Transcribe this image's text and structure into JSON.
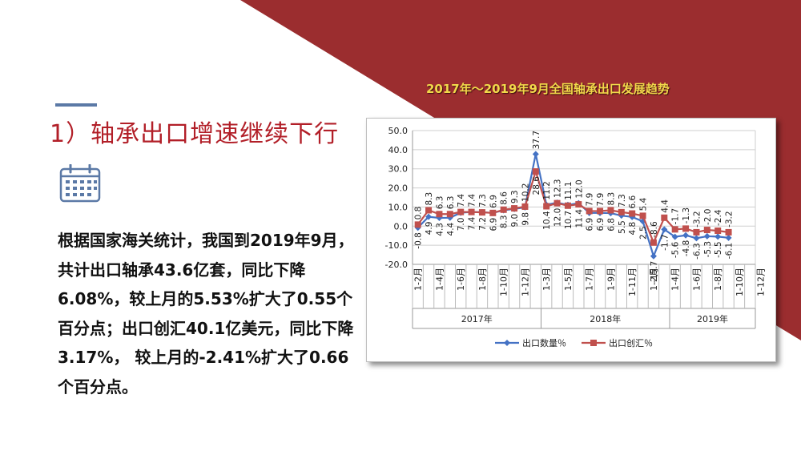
{
  "colors": {
    "banner": "#9b2d2f",
    "heading": "#b21f28",
    "accent_line": "#5b79a6",
    "series_quantity": "#4472c4",
    "series_value": "#c0504d",
    "chart_title": "#f1d84a"
  },
  "icons": {
    "calendar": "calendar-icon"
  },
  "heading": "1）轴承出口增速继续下行",
  "body": {
    "paragraph": "根据国家海关统计，我国到2019年9月，共计出口轴承43.6亿套，同比下降6.08%，较上月的5.53%扩大了0.55个百分点；出口创汇40.1亿美元，同比下降3.17%， 较上月的-2.41%扩大了0.66个百分点。"
  },
  "chart_data": {
    "type": "line",
    "title": "2017年～2019年9月全国轴承出口发展趋势",
    "xlabel": "",
    "ylabel": "",
    "ylim": [
      -20,
      50
    ],
    "yticks": [
      "50.0",
      "40.0",
      "30.0",
      "20.0",
      "10.0",
      "0.0",
      "-10.0",
      "-20.0"
    ],
    "grid": true,
    "legend_position": "bottom",
    "x_tick_labels": [
      "1-2月",
      "1-4月",
      "1-6月",
      "1-8月",
      "1-10月",
      "1-12月",
      "1-3月",
      "1-5月",
      "1-7月",
      "1-9月",
      "1-11月",
      "1-2月",
      "1-4月",
      "1-6月",
      "1-8月",
      "1-10月",
      "1-12月"
    ],
    "year_groups": [
      "2017年",
      "2018年",
      "2019年"
    ],
    "series": [
      {
        "name": "出口数量％",
        "marker": "diamond",
        "values": [
          -0.8,
          4.9,
          4.3,
          4.4,
          7.0,
          7.4,
          7.3,
          6.9,
          8.3,
          9.0,
          9.8,
          37.7,
          11.2,
          12.3,
          11.1,
          12.0,
          6.9,
          6.9,
          6.8,
          5.5,
          4.8,
          2.5,
          -15.7,
          -1.7,
          -5.6,
          -4.8,
          -6.3,
          -5.3,
          -5.5,
          -6.1
        ]
      },
      {
        "name": "出口创汇％",
        "marker": "square",
        "values": [
          0.8,
          8.3,
          6.3,
          6.3,
          7.4,
          7.4,
          7.2,
          6.9,
          8.6,
          9.3,
          10.2,
          28.6,
          10.4,
          12.0,
          10.7,
          11.4,
          7.9,
          7.9,
          8.3,
          7.3,
          6.6,
          5.4,
          -8.6,
          4.4,
          -1.7,
          -1.3,
          -3.2,
          -2.0,
          -2.4,
          -3.2
        ]
      }
    ]
  }
}
